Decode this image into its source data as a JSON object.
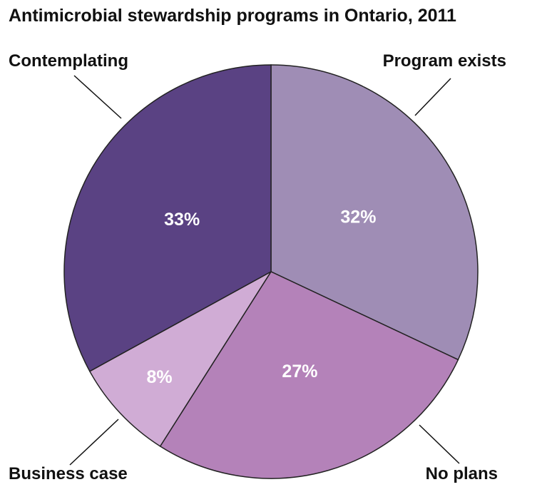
{
  "chart_data": {
    "type": "pie",
    "title": "Antimicrobial stewardship programs in Ontario, 2011",
    "slices": [
      {
        "label": "Program exists",
        "value": 32,
        "value_label": "32%",
        "color": "#9f8db5"
      },
      {
        "label": "No plans",
        "value": 27,
        "value_label": "27%",
        "color": "#b482b9"
      },
      {
        "label": "Business case",
        "value": 8,
        "value_label": "8%",
        "color": "#d0acd5"
      },
      {
        "label": "Contemplating",
        "value": 33,
        "value_label": "33%",
        "color": "#5a4283"
      }
    ],
    "start": "top",
    "direction": "clockwise"
  }
}
